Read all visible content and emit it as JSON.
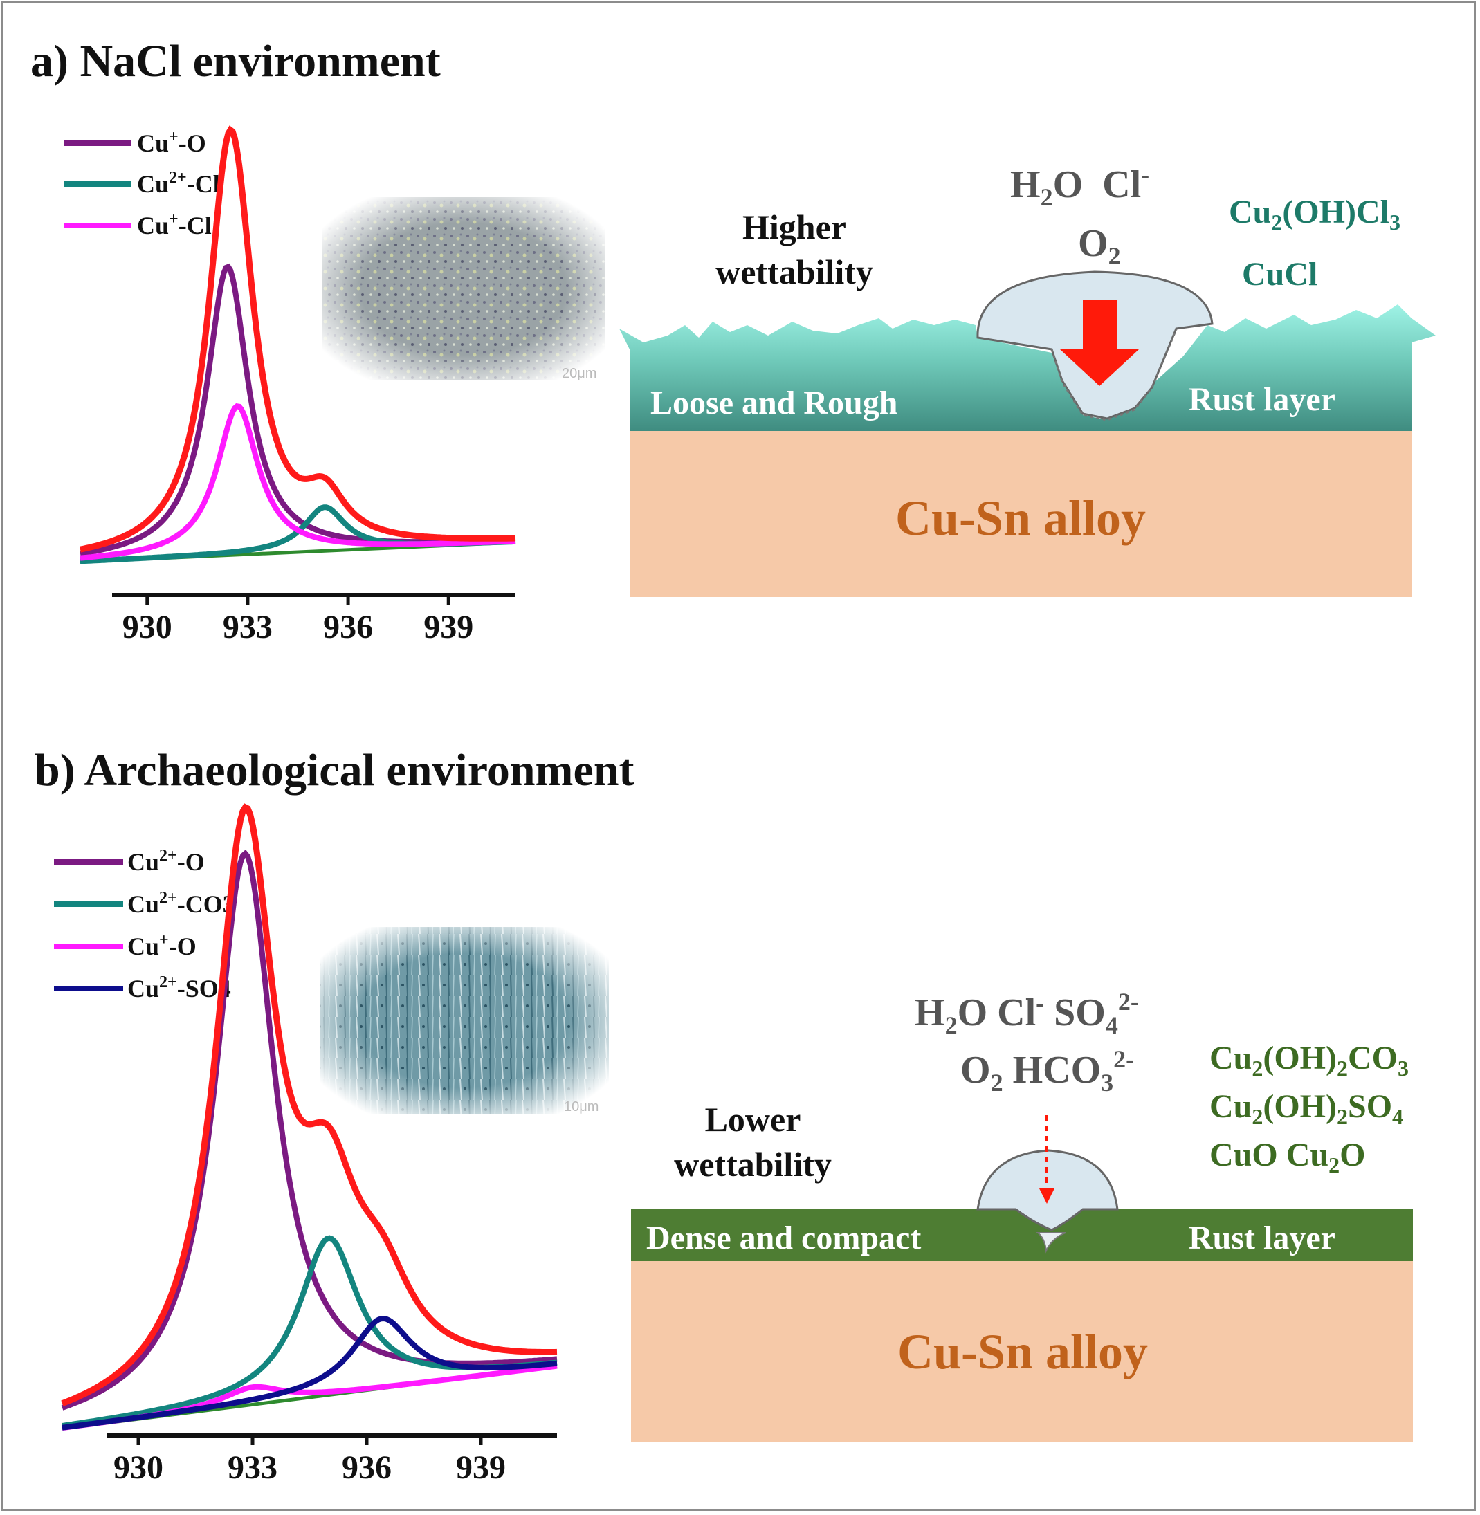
{
  "panel_a": {
    "title": "a) NaCl environment",
    "legend": [
      {
        "ion": "Cu",
        "charge": "+",
        "suffix": "-O",
        "color": "#7b1a82"
      },
      {
        "ion": "Cu",
        "charge": "2+",
        "suffix": "-Cl",
        "color": "#13857f"
      },
      {
        "ion": "Cu",
        "charge": "+",
        "suffix": "-Cl",
        "color": "#ff1aff"
      }
    ],
    "micrograph_scale": "20μm",
    "wettability": [
      "Higher",
      "wettability"
    ],
    "species_top": {
      "h2o": "H",
      "h2o_sub": "2",
      "h2o_tail": "O",
      "cl": "Cl",
      "cl_sup": "-",
      "o2": "O",
      "o2_sub": "2"
    },
    "products": [
      "Cu2(OH)Cl3",
      "CuCl"
    ],
    "layer_left": "Loose and Rough",
    "layer_right": "Rust layer",
    "alloy": "Cu-Sn alloy"
  },
  "panel_b": {
    "title": "b) Archaeological environment",
    "legend": [
      {
        "ion": "Cu",
        "charge": "2+",
        "suffix": "-O",
        "color": "#7b1a82"
      },
      {
        "ion": "Cu",
        "charge": "2+",
        "suffix": "-CO3",
        "color": "#13857f"
      },
      {
        "ion": "Cu",
        "charge": "+",
        "suffix": "-O",
        "color": "#ff1aff"
      },
      {
        "ion": "Cu",
        "charge": "2+",
        "suffix": "-SO4",
        "color": "#0d0d8c"
      }
    ],
    "micrograph_scale": "10μm",
    "wettability": [
      "Lower",
      "wettability"
    ],
    "species_line1": "H2O Cl- SO4 2-",
    "species_line2": "O2 HCO3 2-",
    "products": [
      "Cu2(OH)2CO3",
      "Cu2(OH)2SO4",
      "CuO  Cu2O"
    ],
    "layer_left": "Dense and compact",
    "layer_right": "Rust layer",
    "alloy": "Cu-Sn alloy"
  },
  "chart_data": [
    {
      "type": "line",
      "title": "",
      "xlabel": "",
      "ylabel": "",
      "xticks": [
        930,
        933,
        936,
        939
      ],
      "xlim": [
        928,
        941
      ],
      "series": [
        {
          "name": "Cu+-O",
          "color": "#7b1a82",
          "peak": 932.4,
          "height": 0.66
        },
        {
          "name": "Cu2+-Cl",
          "color": "#13857f",
          "peak": 935.3,
          "height": 0.1
        },
        {
          "name": "Cu+-Cl",
          "color": "#ff1aff",
          "peak": 932.7,
          "height": 0.34
        },
        {
          "name": "",
          "color": "#ff1a1a",
          "peak": 932.5,
          "height": 1.0
        }
      ]
    },
    {
      "type": "line",
      "title": "",
      "xlabel": "",
      "ylabel": "",
      "xticks": [
        930,
        933,
        936,
        939
      ],
      "xlim": [
        928,
        941
      ],
      "series": [
        {
          "name": "Cu2+-O",
          "color": "#7b1a82",
          "peak": 932.8,
          "height": 0.95
        },
        {
          "name": "Cu2+-CO3",
          "color": "#13857f",
          "peak": 935.0,
          "height": 0.27
        },
        {
          "name": "Cu+-O",
          "color": "#ff1aff",
          "peak": 933.0,
          "height": 0.03
        },
        {
          "name": "Cu2+-SO4",
          "color": "#0d0d8c",
          "peak": 936.4,
          "height": 0.12
        },
        {
          "name": "",
          "color": "#ff1a1a",
          "peak": 932.8,
          "height": 1.0
        }
      ]
    }
  ]
}
